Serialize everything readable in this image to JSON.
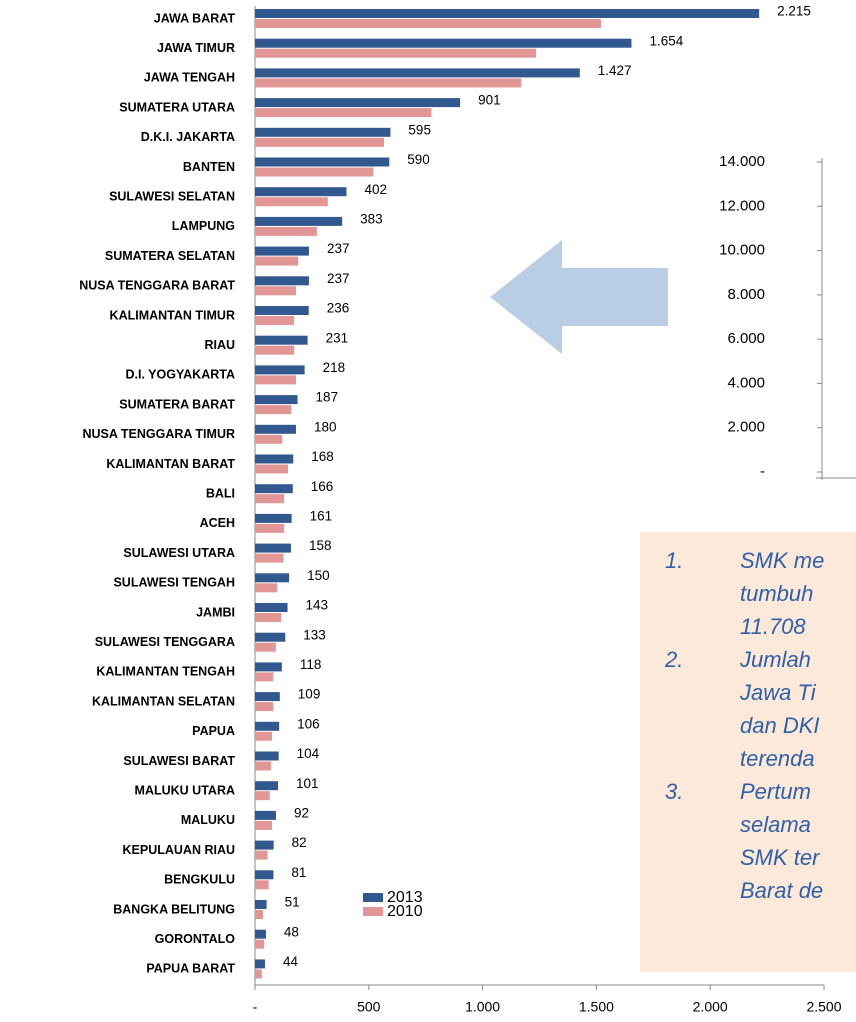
{
  "chart_data": [
    {
      "type": "bar",
      "orientation": "horizontal",
      "categories": [
        "JAWA BARAT",
        "JAWA TIMUR",
        "JAWA TENGAH",
        "SUMATERA UTARA",
        "D.K.I. JAKARTA",
        "BANTEN",
        "SULAWESI SELATAN",
        "LAMPUNG",
        "SUMATERA SELATAN",
        "NUSA TENGGARA BARAT",
        "KALIMANTAN TIMUR",
        "RIAU",
        "D.I. YOGYAKARTA",
        "SUMATERA BARAT",
        "NUSA TENGGARA TIMUR",
        "KALIMANTAN BARAT",
        "BALI",
        "ACEH",
        "SULAWESI UTARA",
        "SULAWESI TENGAH",
        "JAMBI",
        "SULAWESI TENGGARA",
        "KALIMANTAN TENGAH",
        "KALIMANTAN SELATAN",
        "PAPUA",
        "SULAWESI BARAT",
        "MALUKU UTARA",
        "MALUKU",
        "KEPULAUAN RIAU",
        "BENGKULU",
        "BANGKA BELITUNG",
        "GORONTALO",
        "PAPUA  BARAT"
      ],
      "series": [
        {
          "name": "2013",
          "color": "#31598f",
          "values": [
            2215,
            1654,
            1427,
            901,
            595,
            590,
            402,
            383,
            237,
            237,
            236,
            231,
            218,
            187,
            180,
            168,
            166,
            161,
            158,
            150,
            143,
            133,
            118,
            109,
            106,
            104,
            101,
            92,
            82,
            81,
            51,
            48,
            44
          ],
          "value_labels": [
            "2.215",
            "1.654",
            "1.427",
            "901",
            "595",
            "590",
            "402",
            "383",
            "237",
            "237",
            "236",
            "231",
            "218",
            "187",
            "180",
            "168",
            "166",
            "161",
            "158",
            "150",
            "143",
            "133",
            "118",
            "109",
            "106",
            "104",
            "101",
            "92",
            "82",
            "81",
            "51",
            "48",
            "44"
          ]
        },
        {
          "name": "2010",
          "color": "#e39696",
          "values": [
            1520,
            1235,
            1170,
            775,
            567,
            520,
            320,
            272,
            190,
            180,
            172,
            172,
            180,
            160,
            120,
            145,
            128,
            128,
            125,
            97,
            115,
            92,
            80,
            80,
            75,
            70,
            65,
            75,
            55,
            60,
            35,
            40,
            30
          ]
        }
      ],
      "xlim": [
        0,
        2500
      ],
      "xticks": [
        {
          "value": 0,
          "label": "-"
        },
        500,
        {
          "value": 1000,
          "label": "1.000"
        },
        {
          "value": 1500,
          "label": "1.500"
        },
        {
          "value": 2000,
          "label": "2.000"
        },
        {
          "value": 2500,
          "label": "2.500"
        }
      ]
    },
    {
      "type": "bar",
      "ylim": [
        0,
        14000
      ],
      "yticks": [
        {
          "value": 0,
          "label": "-"
        },
        {
          "value": 2000,
          "label": "2.000"
        },
        {
          "value": 4000,
          "label": "4.000"
        },
        {
          "value": 6000,
          "label": "6.000"
        },
        {
          "value": 8000,
          "label": "8.000"
        },
        {
          "value": 10000,
          "label": "10.000"
        },
        {
          "value": 12000,
          "label": "12.000"
        },
        {
          "value": 14000,
          "label": "14.000"
        }
      ]
    }
  ],
  "notes": [
    {
      "number": "1.",
      "lines": [
        "SMK me",
        "tumbuh",
        "11.708"
      ]
    },
    {
      "number": "2.",
      "lines": [
        "Jumlah",
        "Jawa Ti",
        "dan DKI",
        "terenda"
      ]
    },
    {
      "number": "3.",
      "lines": [
        "Pertum",
        "selama",
        "SMK ter",
        "Barat de"
      ]
    }
  ]
}
